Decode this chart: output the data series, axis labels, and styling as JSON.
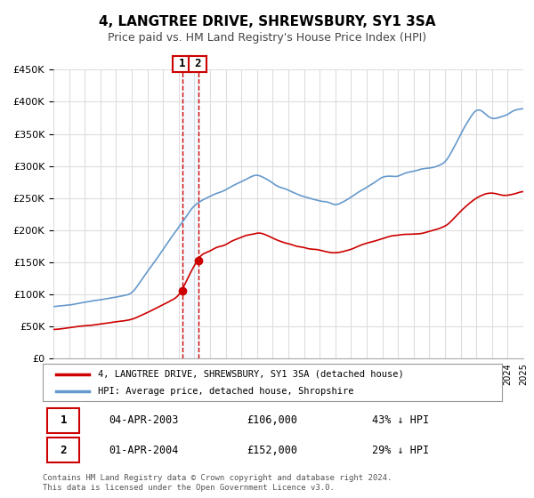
{
  "title": "4, LANGTREE DRIVE, SHREWSBURY, SY1 3SA",
  "subtitle": "Price paid vs. HM Land Registry's House Price Index (HPI)",
  "legend_line1": "4, LANGTREE DRIVE, SHREWSBURY, SY1 3SA (detached house)",
  "legend_line2": "HPI: Average price, detached house, Shropshire",
  "transaction1_label": "1",
  "transaction1_date": "04-APR-2003",
  "transaction1_price": "£106,000",
  "transaction1_hpi": "43% ↓ HPI",
  "transaction1_year": 2003.25,
  "transaction1_value": 106000,
  "transaction2_label": "2",
  "transaction2_date": "01-APR-2004",
  "transaction2_price": "£152,000",
  "transaction2_hpi": "29% ↓ HPI",
  "transaction2_year": 2004.25,
  "transaction2_value": 152000,
  "footer": "Contains HM Land Registry data © Crown copyright and database right 2024.\nThis data is licensed under the Open Government Licence v3.0.",
  "red_line_color": "#cc0000",
  "blue_line_color": "#6699cc",
  "grid_color": "#dddddd",
  "background_color": "#ffffff",
  "highlight_fill": "#ddeeff",
  "dashed_line_color": "#cc0000",
  "ylim": [
    0,
    450000
  ],
  "xlim_start": 1995,
  "xlim_end": 2025
}
